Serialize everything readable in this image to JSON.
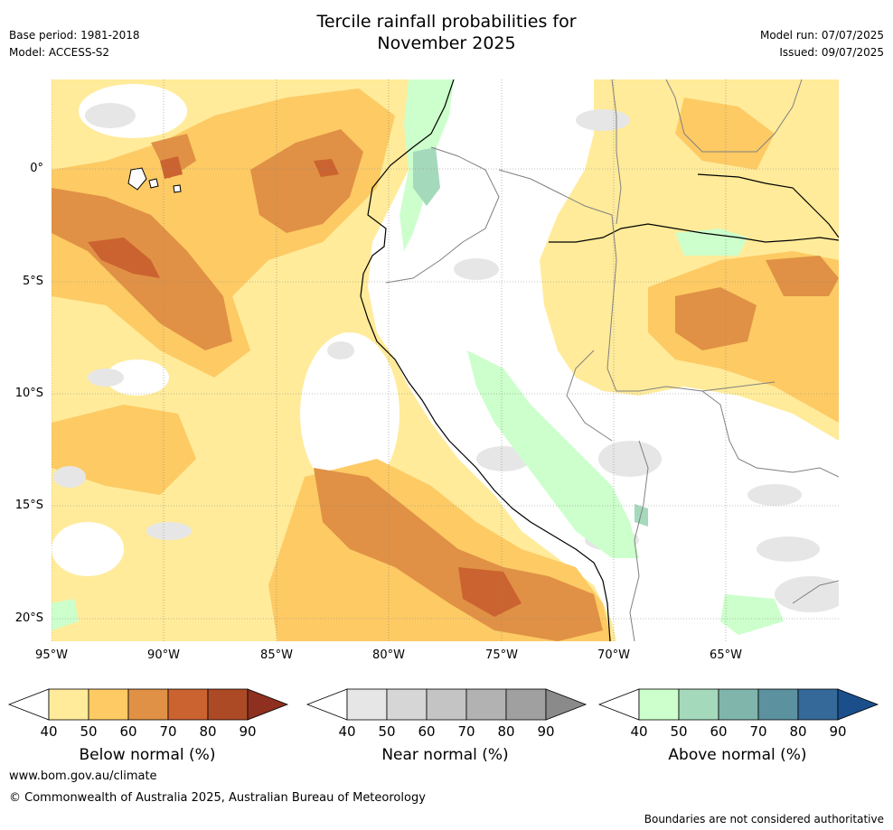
{
  "header": {
    "title_line1": "Tercile rainfall probabilities for",
    "title_line2": "November 2025",
    "base_period": "Base period: 1981-2018",
    "model": "Model: ACCESS-S2",
    "model_run": "Model run: 07/07/2025",
    "issued": "Issued: 09/07/2025"
  },
  "map": {
    "lat_labels": [
      "0°",
      "5°S",
      "10°S",
      "15°S",
      "20°S"
    ],
    "lon_labels": [
      "95°W",
      "90°W",
      "85°W",
      "80°W",
      "75°W",
      "70°W",
      "65°W"
    ],
    "lat_values": [
      0,
      -5,
      -10,
      -15,
      -20
    ],
    "lon_values": [
      -95,
      -90,
      -85,
      -80,
      -75,
      -70,
      -65
    ],
    "extent": {
      "lon_min": -95,
      "lon_max": -60,
      "lat_min": -21,
      "lat_max": 4
    }
  },
  "colorbars": [
    {
      "label": "Below normal (%)",
      "ticks": [
        "40",
        "50",
        "60",
        "70",
        "80",
        "90"
      ],
      "colors": [
        "#ffeb9a",
        "#fdca64",
        "#e09145",
        "#cb6330",
        "#ad4a26",
        "#8e2f20"
      ]
    },
    {
      "label": "Near normal (%)",
      "ticks": [
        "40",
        "50",
        "60",
        "70",
        "80",
        "90"
      ],
      "colors": [
        "#e6e6e6",
        "#d6d6d6",
        "#c4c4c4",
        "#b2b2b2",
        "#a0a0a0",
        "#8a8a8a"
      ]
    },
    {
      "label": "Above normal (%)",
      "ticks": [
        "40",
        "50",
        "60",
        "70",
        "80",
        "90"
      ],
      "colors": [
        "#ccffcc",
        "#a5d9bc",
        "#80b5ab",
        "#5c91a0",
        "#34699a",
        "#1a4f8b"
      ]
    }
  ],
  "footer": {
    "website": "www.bom.gov.au/climate",
    "copyright": "© Commonwealth of Australia 2025, Australian Bureau of Meteorology",
    "disclaimer": "Boundaries are not considered authoritative"
  }
}
